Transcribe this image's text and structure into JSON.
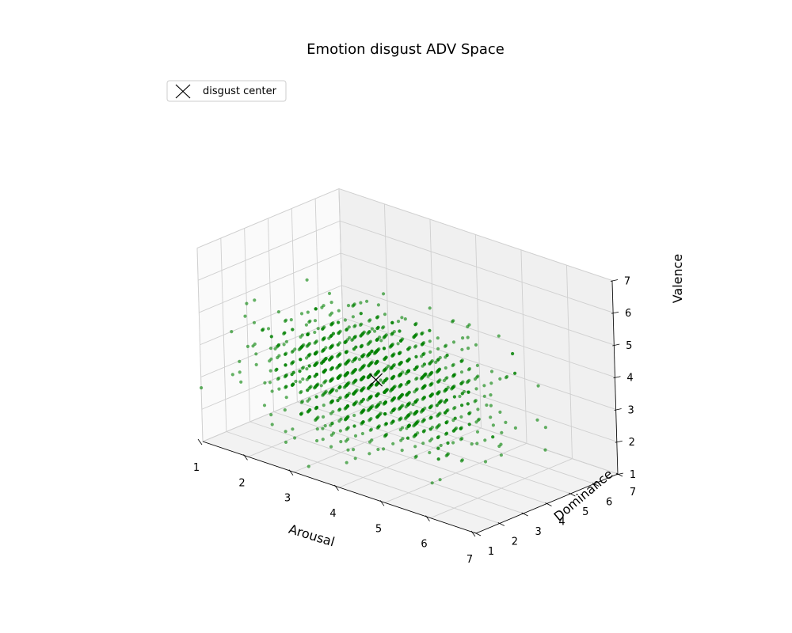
{
  "chart_data": {
    "type": "scatter",
    "projection": "3d",
    "title": "Emotion disgust ADV Space",
    "xlabel": "Arousal",
    "ylabel": "Dominance",
    "zlabel": "Valence",
    "xlim": [
      1,
      7
    ],
    "ylim": [
      1,
      7
    ],
    "zlim": [
      1,
      7
    ],
    "xticks": [
      "1",
      "2",
      "3",
      "4",
      "5",
      "6",
      "7"
    ],
    "yticks": [
      "1",
      "2",
      "3",
      "4",
      "5",
      "6",
      "7"
    ],
    "zticks": [
      "1",
      "2",
      "3",
      "4",
      "5",
      "6",
      "7"
    ],
    "grid": true,
    "legend": {
      "placement": "top-left",
      "entries": [
        {
          "label": "disgust center",
          "marker": "x",
          "color": "#000000"
        }
      ]
    },
    "series": [
      {
        "color": "#008000",
        "alpha": 0.6,
        "point_count": 1500,
        "distribution": {
          "center": [
            3.5,
            3.6,
            3.3
          ],
          "spread": [
            1.0,
            1.0,
            0.8
          ],
          "seed": 7
        }
      }
    ],
    "center": {
      "label": "disgust center",
      "x": 3.5,
      "y": 3.6,
      "z": 3.3,
      "marker": "x",
      "color": "#000000"
    }
  }
}
